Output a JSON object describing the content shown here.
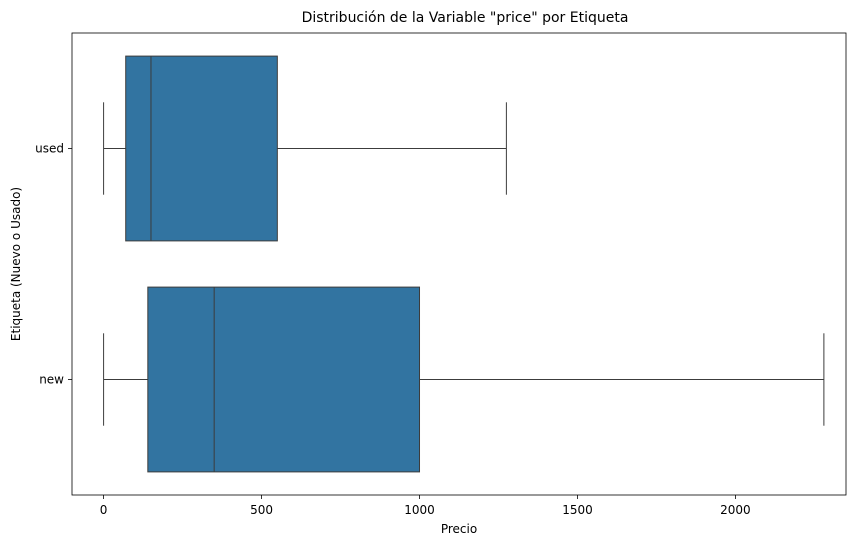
{
  "chart_data": {
    "type": "boxplot",
    "orientation": "horizontal",
    "title": "Distribución de la Variable \"price\" por Etiqueta",
    "xlabel": "Precio",
    "ylabel": "Etiqueta (Nuevo o Usado)",
    "xlim": [
      -100,
      2350
    ],
    "xticks": [
      0,
      500,
      1000,
      1500,
      2000
    ],
    "grid": false,
    "series": [
      {
        "category": "used",
        "whisker_low": 0,
        "q1": 70,
        "median": 150,
        "q3": 550,
        "whisker_high": 1275
      },
      {
        "category": "new",
        "whisker_low": 0,
        "q1": 140,
        "median": 350,
        "q3": 1000,
        "whisker_high": 2280
      }
    ],
    "colors": {
      "box": "#3274a1",
      "line": "#3c3c3c"
    }
  }
}
